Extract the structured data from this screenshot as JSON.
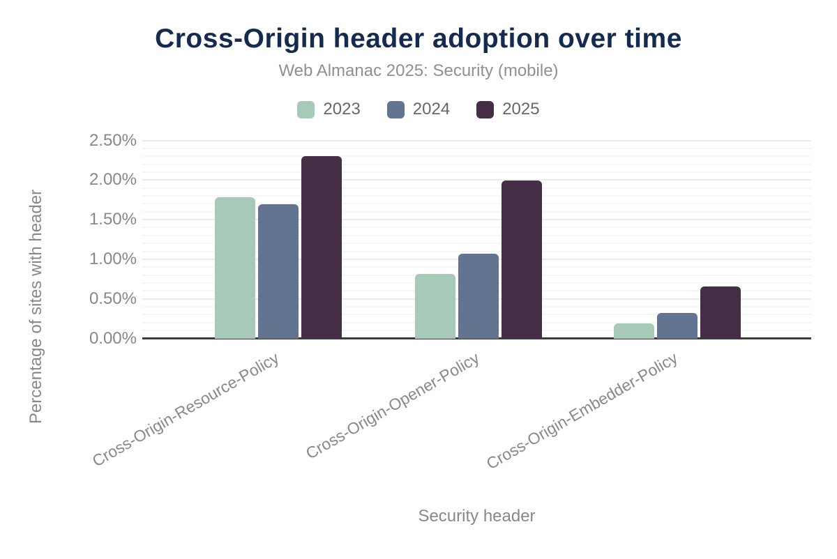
{
  "title": "Cross-Origin header adoption over time",
  "subtitle": "Web Almanac 2025: Security (mobile)",
  "colors": {
    "title_navy": "#142a4e",
    "axis_gray": "#85898c",
    "baseline": "#3a3b3d",
    "series_2023": "#a7cab8",
    "series_2024": "#62748f",
    "series_2025": "#432e45"
  },
  "chart_data": {
    "type": "bar",
    "title": "Cross-Origin header adoption over time",
    "subtitle": "Web Almanac 2025: Security (mobile)",
    "categories": [
      "Cross-Origin-Resource-Policy",
      "Cross-Origin-Opener-Policy",
      "Cross-Origin-Embedder-Policy"
    ],
    "series": [
      {
        "name": "2023",
        "color": "#a7cab8",
        "values": [
          1.79,
          0.82,
          0.19
        ]
      },
      {
        "name": "2024",
        "color": "#62748f",
        "values": [
          1.7,
          1.07,
          0.33
        ]
      },
      {
        "name": "2025",
        "color": "#432e45",
        "values": [
          2.31,
          2.0,
          0.66
        ]
      }
    ],
    "xlabel": "Security header",
    "ylabel": "Percentage of sites with header",
    "ylim": [
      0,
      2.5
    ],
    "yticks": [
      "0.00%",
      "0.50%",
      "1.00%",
      "1.50%",
      "2.00%",
      "2.50%"
    ],
    "ytick_values": [
      0,
      0.5,
      1.0,
      1.5,
      2.0,
      2.5
    ],
    "grid": {
      "on": true,
      "major_step": 0.5,
      "minor_step": 0.1
    },
    "legend_position": "top",
    "legend_entries": [
      "2023",
      "2024",
      "2025"
    ]
  }
}
